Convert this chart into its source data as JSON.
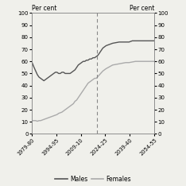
{
  "title_left": "Per cent",
  "title_right": "Per cent",
  "ylim": [
    0,
    100
  ],
  "yticks": [
    0,
    10,
    20,
    30,
    40,
    50,
    60,
    70,
    80,
    90,
    100
  ],
  "xtick_labels": [
    "1979-80",
    "1994-95",
    "2009-10",
    "2024-25",
    "2039-40",
    "2054-55"
  ],
  "xtick_positions": [
    1979.5,
    1994.5,
    2009.5,
    2024.5,
    2039.5,
    2054.5
  ],
  "x_min": 1979.5,
  "x_max": 2054.5,
  "dashed_line_x": 2019.5,
  "males_color": "#555555",
  "females_color": "#aaaaaa",
  "legend_labels": [
    "Males",
    "Females"
  ],
  "background_color": "#f0f0eb",
  "males_data_x": [
    1979.5,
    1981,
    1982,
    1983,
    1984,
    1985,
    1986,
    1987,
    1988,
    1989,
    1990,
    1991,
    1992,
    1993,
    1994,
    1995,
    1996,
    1997,
    1998,
    1999,
    2000,
    2001,
    2002,
    2003,
    2004,
    2005,
    2006,
    2007,
    2008,
    2009,
    2010,
    2011,
    2012,
    2013,
    2014,
    2015,
    2016,
    2017,
    2018,
    2019,
    2020,
    2021,
    2022,
    2023,
    2024,
    2025,
    2027,
    2029,
    2031,
    2033,
    2035,
    2037,
    2039,
    2041,
    2043,
    2045,
    2047,
    2049,
    2051,
    2053,
    2054.5
  ],
  "males_data_y": [
    60,
    55,
    52,
    49,
    47,
    46,
    45,
    44,
    45,
    46,
    47,
    48,
    49,
    50,
    51,
    51,
    50,
    50,
    51,
    51,
    50,
    50,
    50,
    50,
    51,
    52,
    53,
    55,
    57,
    58,
    59,
    60,
    60,
    61,
    61,
    62,
    62,
    63,
    63,
    64,
    65,
    67,
    69,
    71,
    72,
    73,
    74,
    75,
    75.5,
    76,
    76,
    76,
    76,
    77,
    77,
    77,
    77,
    77,
    77,
    77,
    77
  ],
  "females_data_x": [
    1979.5,
    1981,
    1982,
    1983,
    1984,
    1985,
    1986,
    1987,
    1988,
    1989,
    1990,
    1991,
    1992,
    1993,
    1994,
    1995,
    1996,
    1997,
    1998,
    1999,
    2000,
    2001,
    2002,
    2003,
    2004,
    2005,
    2006,
    2007,
    2008,
    2009,
    2010,
    2011,
    2012,
    2013,
    2014,
    2015,
    2016,
    2017,
    2018,
    2019,
    2020,
    2021,
    2022,
    2023,
    2024,
    2025,
    2027,
    2029,
    2031,
    2033,
    2035,
    2037,
    2039,
    2041,
    2043,
    2045,
    2047,
    2049,
    2051,
    2053,
    2054.5
  ],
  "females_data_y": [
    11,
    11,
    11,
    10.5,
    11,
    11,
    11.5,
    12,
    12.5,
    13,
    13.5,
    14,
    14.5,
    15,
    15.5,
    16,
    17,
    17.5,
    18,
    19,
    20,
    21,
    22,
    23,
    24,
    25,
    27,
    28,
    30,
    32,
    34,
    36,
    38,
    40,
    42,
    43,
    44,
    45,
    46,
    46,
    47.5,
    49,
    50.5,
    52,
    53,
    54,
    55.5,
    57,
    57.5,
    58,
    58.5,
    59,
    59,
    59.5,
    60,
    60,
    60,
    60,
    60,
    60,
    60
  ]
}
